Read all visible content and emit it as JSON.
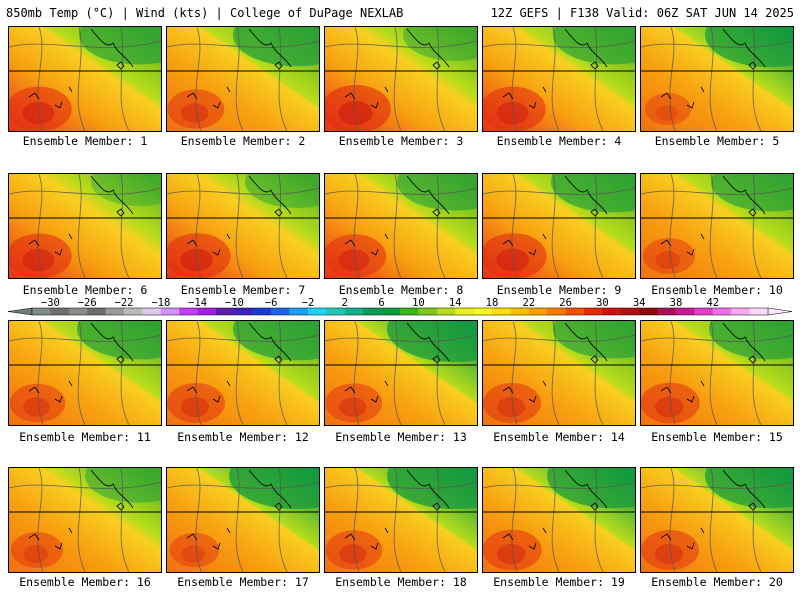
{
  "header": {
    "left": "850mb Temp (°C) | Wind (kts) | College of DuPage NEXLAB",
    "right": "12Z GEFS | F138 Valid: 06Z SAT JUN 14 2025"
  },
  "members": [
    {
      "caption": "Ensemble Member: 1",
      "warmth": 0.62,
      "cool_ne": 0.75
    },
    {
      "caption": "Ensemble Member: 2",
      "warmth": 0.48,
      "cool_ne": 0.85
    },
    {
      "caption": "Ensemble Member: 3",
      "warmth": 0.7,
      "cool_ne": 0.55
    },
    {
      "caption": "Ensemble Member: 4",
      "warmth": 0.62,
      "cool_ne": 0.75
    },
    {
      "caption": "Ensemble Member: 5",
      "warmth": 0.3,
      "cool_ne": 0.9
    },
    {
      "caption": "Ensemble Member: 6",
      "warmth": 0.62,
      "cool_ne": 0.45
    },
    {
      "caption": "Ensemble Member: 7",
      "warmth": 0.64,
      "cool_ne": 0.55
    },
    {
      "caption": "Ensemble Member: 8",
      "warmth": 0.58,
      "cool_ne": 0.7
    },
    {
      "caption": "Ensemble Member: 9",
      "warmth": 0.64,
      "cool_ne": 0.8
    },
    {
      "caption": "Ensemble Member: 10",
      "warmth": 0.4,
      "cool_ne": 0.75
    },
    {
      "caption": "Ensemble Member: 11",
      "warmth": 0.46,
      "cool_ne": 0.8
    },
    {
      "caption": "Ensemble Member: 12",
      "warmth": 0.5,
      "cool_ne": 0.85
    },
    {
      "caption": "Ensemble Member: 13",
      "warmth": 0.48,
      "cool_ne": 0.95
    },
    {
      "caption": "Ensemble Member: 14",
      "warmth": 0.5,
      "cool_ne": 0.75
    },
    {
      "caption": "Ensemble Member: 15",
      "warmth": 0.52,
      "cool_ne": 0.8
    },
    {
      "caption": "Ensemble Member: 16",
      "warmth": 0.4,
      "cool_ne": 0.6
    },
    {
      "caption": "Ensemble Member: 17",
      "warmth": 0.36,
      "cool_ne": 0.95
    },
    {
      "caption": "Ensemble Member: 18",
      "warmth": 0.48,
      "cool_ne": 0.95
    },
    {
      "caption": "Ensemble Member: 19",
      "warmth": 0.52,
      "cool_ne": 0.9
    },
    {
      "caption": "Ensemble Member: 20",
      "warmth": 0.5,
      "cool_ne": 0.9
    }
  ],
  "colorbar": {
    "labels": [
      "−30",
      "−26",
      "−22",
      "−18",
      "−14",
      "−10",
      "−6",
      "−2",
      "2",
      "6",
      "10",
      "14",
      "18",
      "22",
      "26",
      "30",
      "34",
      "38",
      "42"
    ],
    "bin_colors": [
      "#7f8c86",
      "#6d6f6f",
      "#8a8a8a",
      "#6c6c6c",
      "#9a9a9a",
      "#bababa",
      "#e0c7f0",
      "#d690ff",
      "#c040ff",
      "#a020e0",
      "#5a1ea8",
      "#3a24b8",
      "#1a3ad8",
      "#1e64ec",
      "#1aa0f4",
      "#1ed2f6",
      "#20c8b4",
      "#18b08c",
      "#109a5a",
      "#0c9c3c",
      "#3cb41e",
      "#7cc81c",
      "#b4dc1c",
      "#e8f014",
      "#fcfc10",
      "#fce000",
      "#fcc000",
      "#fca000",
      "#f87a00",
      "#f05000",
      "#e82800",
      "#d01010",
      "#b01010",
      "#8c0a0a",
      "#a8105a",
      "#c81894",
      "#e040c8",
      "#f070e8",
      "#f8a8f4",
      "#fdd8fb"
    ],
    "under_color": "#6f7d77",
    "over_color": "#fde3fb"
  }
}
